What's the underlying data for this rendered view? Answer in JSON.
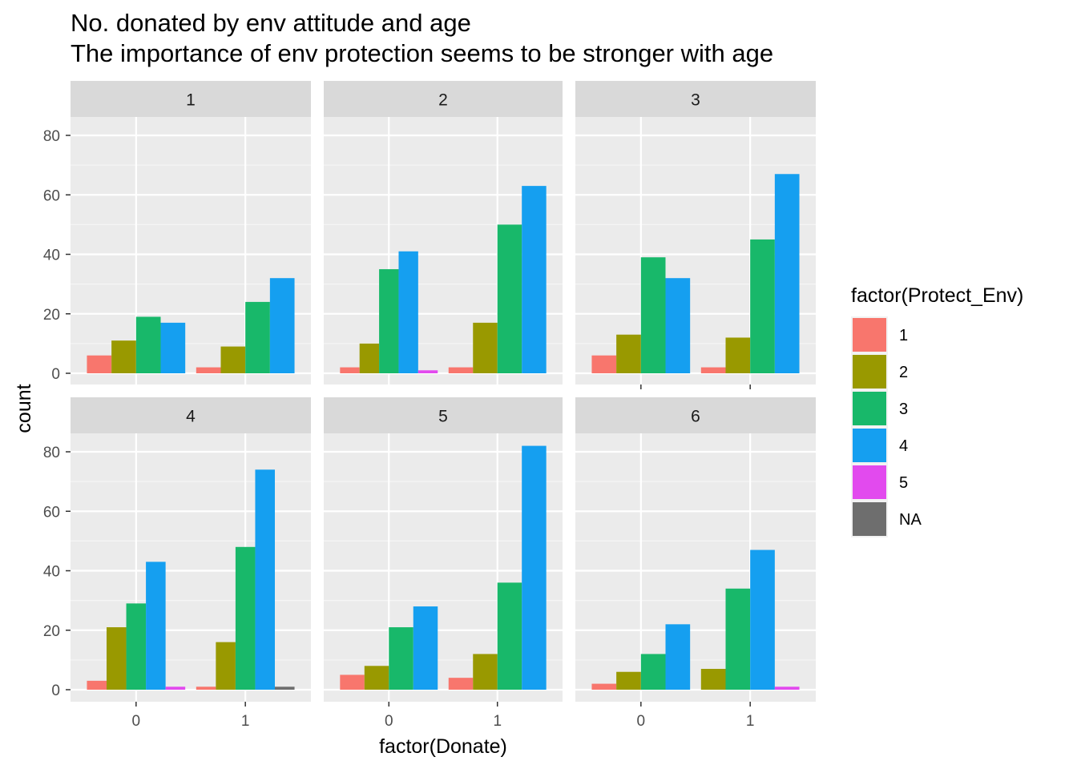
{
  "chart_data": {
    "type": "bar",
    "title": "No. donated by env attitude and age",
    "subtitle": "The importance of env protection seems to be stronger with age",
    "xlabel": "factor(Donate)",
    "ylabel": "count",
    "ylim": [
      0,
      90
    ],
    "y_ticks": [
      "0",
      "20",
      "40",
      "60",
      "80"
    ],
    "categories": [
      "0",
      "1"
    ],
    "grid": true,
    "legend": {
      "title": "factor(Protect_Env)",
      "position": "right",
      "entries": [
        {
          "label": "1",
          "color": "#F8766D"
        },
        {
          "label": "2",
          "color": "#999900"
        },
        {
          "label": "3",
          "color": "#18B86A"
        },
        {
          "label": "4",
          "color": "#159FF0"
        },
        {
          "label": "5",
          "color": "#E24AEE"
        },
        {
          "label": "NA",
          "color": "#6E6E6E"
        }
      ]
    },
    "panels": [
      {
        "label": "1",
        "groups": [
          {
            "x": "0",
            "bars": [
              {
                "level": "1",
                "value": 6
              },
              {
                "level": "2",
                "value": 11
              },
              {
                "level": "3",
                "value": 19
              },
              {
                "level": "4",
                "value": 17
              }
            ]
          },
          {
            "x": "1",
            "bars": [
              {
                "level": "1",
                "value": 2
              },
              {
                "level": "2",
                "value": 9
              },
              {
                "level": "3",
                "value": 24
              },
              {
                "level": "4",
                "value": 32
              }
            ]
          }
        ]
      },
      {
        "label": "2",
        "groups": [
          {
            "x": "0",
            "bars": [
              {
                "level": "1",
                "value": 2
              },
              {
                "level": "2",
                "value": 10
              },
              {
                "level": "3",
                "value": 35
              },
              {
                "level": "4",
                "value": 41
              },
              {
                "level": "5",
                "value": 1
              }
            ]
          },
          {
            "x": "1",
            "bars": [
              {
                "level": "1",
                "value": 2
              },
              {
                "level": "2",
                "value": 17
              },
              {
                "level": "3",
                "value": 50
              },
              {
                "level": "4",
                "value": 63
              }
            ]
          }
        ]
      },
      {
        "label": "3",
        "groups": [
          {
            "x": "0",
            "bars": [
              {
                "level": "1",
                "value": 6
              },
              {
                "level": "2",
                "value": 13
              },
              {
                "level": "3",
                "value": 39
              },
              {
                "level": "4",
                "value": 32
              }
            ]
          },
          {
            "x": "1",
            "bars": [
              {
                "level": "1",
                "value": 2
              },
              {
                "level": "2",
                "value": 12
              },
              {
                "level": "3",
                "value": 45
              },
              {
                "level": "4",
                "value": 67
              }
            ]
          }
        ]
      },
      {
        "label": "4",
        "groups": [
          {
            "x": "0",
            "bars": [
              {
                "level": "1",
                "value": 3
              },
              {
                "level": "2",
                "value": 21
              },
              {
                "level": "3",
                "value": 29
              },
              {
                "level": "4",
                "value": 43
              },
              {
                "level": "5",
                "value": 1
              }
            ]
          },
          {
            "x": "1",
            "bars": [
              {
                "level": "1",
                "value": 1
              },
              {
                "level": "2",
                "value": 16
              },
              {
                "level": "3",
                "value": 48
              },
              {
                "level": "4",
                "value": 74
              },
              {
                "level": "NA",
                "value": 1
              }
            ]
          }
        ]
      },
      {
        "label": "5",
        "groups": [
          {
            "x": "0",
            "bars": [
              {
                "level": "1",
                "value": 5
              },
              {
                "level": "2",
                "value": 8
              },
              {
                "level": "3",
                "value": 21
              },
              {
                "level": "4",
                "value": 28
              }
            ]
          },
          {
            "x": "1",
            "bars": [
              {
                "level": "1",
                "value": 4
              },
              {
                "level": "2",
                "value": 12
              },
              {
                "level": "3",
                "value": 36
              },
              {
                "level": "4",
                "value": 82
              }
            ]
          }
        ]
      },
      {
        "label": "6",
        "groups": [
          {
            "x": "0",
            "bars": [
              {
                "level": "1",
                "value": 2
              },
              {
                "level": "2",
                "value": 6
              },
              {
                "level": "3",
                "value": 12
              },
              {
                "level": "4",
                "value": 22
              }
            ]
          },
          {
            "x": "1",
            "bars": [
              {
                "level": "2",
                "value": 7
              },
              {
                "level": "3",
                "value": 34
              },
              {
                "level": "4",
                "value": 47
              },
              {
                "level": "5",
                "value": 1
              }
            ]
          }
        ]
      }
    ]
  }
}
